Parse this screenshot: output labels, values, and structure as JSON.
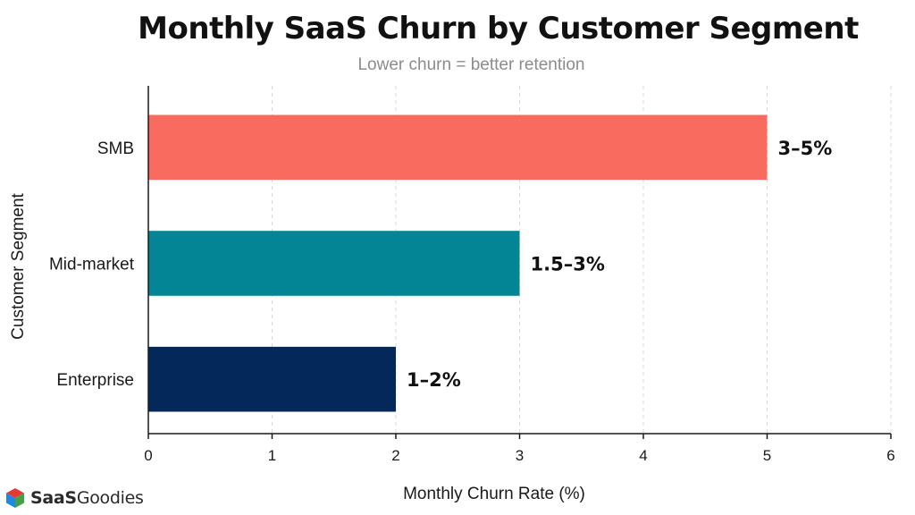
{
  "chart_data": {
    "type": "bar",
    "orientation": "horizontal",
    "title": "Monthly SaaS Churn by Customer Segment",
    "subtitle": "Lower churn = better retention",
    "xlabel": "Monthly Churn Rate (%)",
    "ylabel": "Customer Segment",
    "xlim": [
      0,
      6
    ],
    "xticks": [
      "0",
      "1",
      "2",
      "3",
      "4",
      "5",
      "6"
    ],
    "grid": true,
    "categories": [
      "SMB",
      "Mid-market",
      "Enterprise"
    ],
    "values": [
      5,
      3,
      2
    ],
    "data_labels": [
      "3–5%",
      "1.5–3%",
      "1–2%"
    ],
    "colors": [
      "#f96b5e",
      "#038596",
      "#04285a"
    ]
  },
  "brand": {
    "strong": "SaaS",
    "light": "Goodies",
    "icon": "hexagon-cube-icon",
    "colors": [
      "#e53935",
      "#7cb342",
      "#1e88e5",
      "#43a047"
    ]
  }
}
